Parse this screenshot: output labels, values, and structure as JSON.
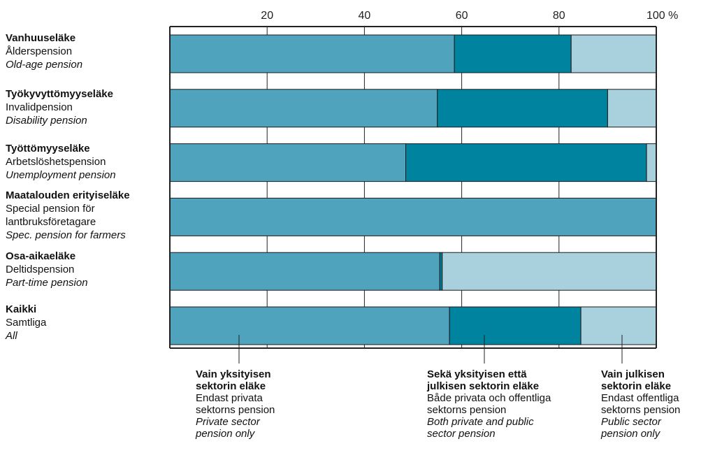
{
  "chart_data": {
    "type": "bar",
    "orientation": "horizontal",
    "stacked": true,
    "xlim": [
      0,
      100
    ],
    "x_ticks": [
      {
        "value": 20,
        "label": "20"
      },
      {
        "value": 40,
        "label": "40"
      },
      {
        "value": 60,
        "label": "60"
      },
      {
        "value": 80,
        "label": "80"
      },
      {
        "value": 100,
        "label": "100 %"
      }
    ],
    "grid": true,
    "categories": [
      {
        "fi": "Vanhuuseläke",
        "sv": "Ålderspension",
        "en": "Old-age pension"
      },
      {
        "fi": "Työkyvyttömyyseläke",
        "sv": "Invalidpension",
        "en": "Disability pension"
      },
      {
        "fi": "Työttömyyseläke",
        "sv": "Arbetslöshetspension",
        "en": "Unemployment pension"
      },
      {
        "fi": "Maatalouden erityiseläke",
        "sv": "Special pension för\nlantbruksföretagare",
        "en": "Spec. pension for farmers"
      },
      {
        "fi": "Osa-aikaeläke",
        "sv": "Deltidspension",
        "en": "Part-time pension"
      },
      {
        "fi": "Kaikki",
        "sv": "Samtliga",
        "en": "All"
      }
    ],
    "series": [
      {
        "fi": "Vain yksityisen\nsektorin eläke",
        "sv": "Endast privata\nsektorns pension",
        "en": "Private sector\npension only",
        "color": "#4fa3bd",
        "values": [
          58.5,
          55,
          48.5,
          100,
          55.5,
          57.5
        ]
      },
      {
        "fi": "Sekä yksityisen että\njulkisen sektorin eläke",
        "sv": "Både privata och offentliga\nsektorns pension",
        "en": "Both private and public\nsector pension",
        "color": "#00839f",
        "values": [
          24,
          35,
          49.5,
          0,
          0.5,
          27
        ]
      },
      {
        "fi": "Vain julkisen\nsektorin eläke",
        "sv": "Endast offentliga\nsektorns pension",
        "en": "Public sector\npension only",
        "color": "#a9d0dd",
        "values": [
          17.5,
          10,
          2,
          0,
          44,
          15.5
        ]
      }
    ]
  }
}
